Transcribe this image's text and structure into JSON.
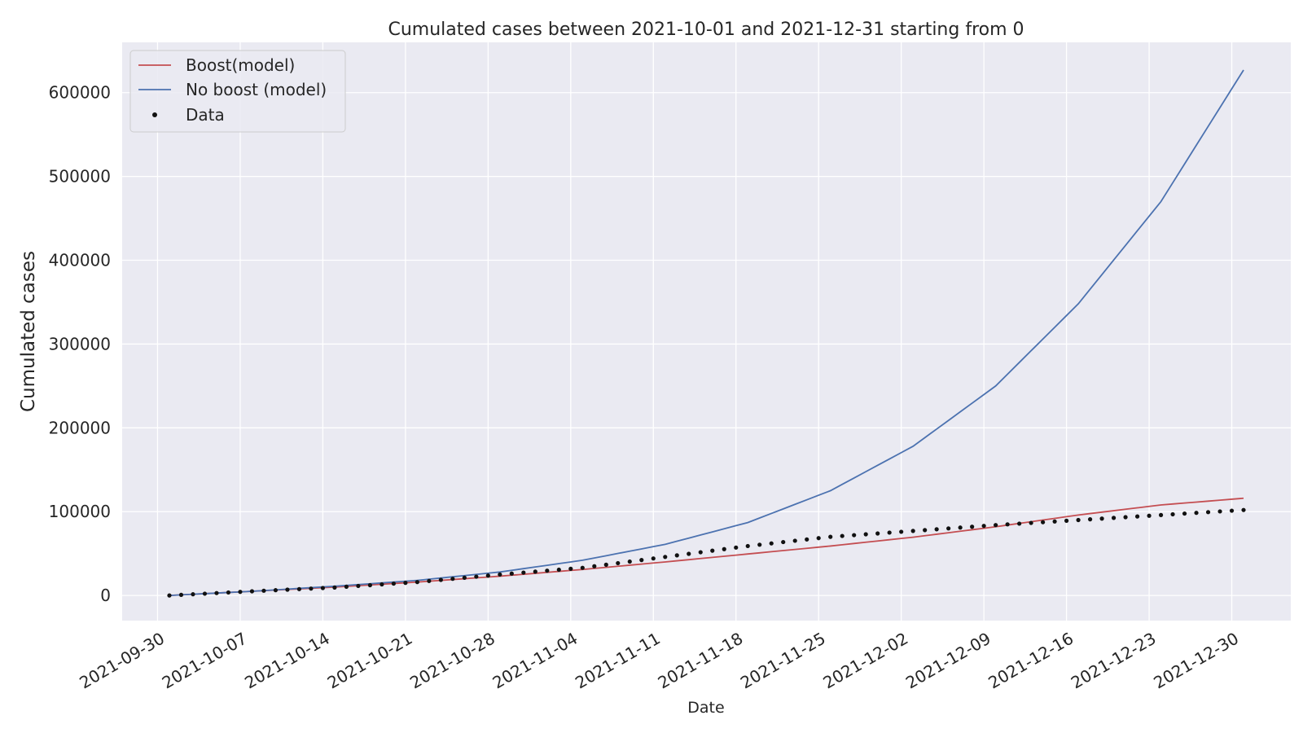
{
  "chart_data": {
    "type": "line",
    "title": "Cumulated cases between 2021-10-01 and 2021-12-31 starting from 0",
    "xlabel": "Date",
    "ylabel": "Cumulated cases",
    "x_range": [
      "2021-10-01",
      "2021-12-31"
    ],
    "xlim": [
      "2021-09-27",
      "2022-01-04"
    ],
    "ylim": [
      -30000,
      660000
    ],
    "x_ticks": [
      "2021-09-30",
      "2021-10-07",
      "2021-10-14",
      "2021-10-21",
      "2021-10-28",
      "2021-11-04",
      "2021-11-11",
      "2021-11-18",
      "2021-11-25",
      "2021-12-02",
      "2021-12-09",
      "2021-12-16",
      "2021-12-23",
      "2021-12-30"
    ],
    "y_ticks": [
      0,
      100000,
      200000,
      300000,
      400000,
      500000,
      600000
    ],
    "y_tick_labels": [
      "0",
      "100000",
      "200000",
      "300000",
      "400000",
      "500000",
      "600000"
    ],
    "grid": true,
    "legend_position": "top-left",
    "colors": {
      "background": "#eaeaf2",
      "grid": "#ffffff",
      "boost": "#c44e52",
      "no_boost": "#4c72b0",
      "data": "#111111"
    },
    "series": [
      {
        "name": "Boost(model)",
        "kind": "line",
        "color": "#c44e52",
        "points": [
          [
            "2021-10-01",
            0
          ],
          [
            "2021-10-08",
            5000
          ],
          [
            "2021-10-15",
            10000
          ],
          [
            "2021-10-22",
            16000
          ],
          [
            "2021-10-29",
            23000
          ],
          [
            "2021-11-05",
            31000
          ],
          [
            "2021-11-12",
            40000
          ],
          [
            "2021-11-19",
            49500
          ],
          [
            "2021-11-26",
            59000
          ],
          [
            "2021-12-03",
            69500
          ],
          [
            "2021-12-10",
            82000
          ],
          [
            "2021-12-17",
            96000
          ],
          [
            "2021-12-24",
            108000
          ],
          [
            "2021-12-31",
            116000
          ]
        ]
      },
      {
        "name": "No boost (model)",
        "kind": "line",
        "color": "#4c72b0",
        "points": [
          [
            "2021-10-01",
            0
          ],
          [
            "2021-10-08",
            5000
          ],
          [
            "2021-10-15",
            11000
          ],
          [
            "2021-10-22",
            18000
          ],
          [
            "2021-10-29",
            28000
          ],
          [
            "2021-11-05",
            42000
          ],
          [
            "2021-11-12",
            61000
          ],
          [
            "2021-11-19",
            87000
          ],
          [
            "2021-11-26",
            125000
          ],
          [
            "2021-12-03",
            178000
          ],
          [
            "2021-12-10",
            250000
          ],
          [
            "2021-12-17",
            348000
          ],
          [
            "2021-12-24",
            470000
          ],
          [
            "2021-12-31",
            627000
          ]
        ]
      },
      {
        "name": "Data",
        "kind": "scatter",
        "color": "#111111",
        "points": [
          [
            "2021-10-01",
            0
          ],
          [
            "2021-10-08",
            5000
          ],
          [
            "2021-10-15",
            9500
          ],
          [
            "2021-10-22",
            16000
          ],
          [
            "2021-10-29",
            25000
          ],
          [
            "2021-11-05",
            33000
          ],
          [
            "2021-11-12",
            46000
          ],
          [
            "2021-11-19",
            59000
          ],
          [
            "2021-11-26",
            70000
          ],
          [
            "2021-12-03",
            77000
          ],
          [
            "2021-12-10",
            84000
          ],
          [
            "2021-12-17",
            90000
          ],
          [
            "2021-12-24",
            96000
          ],
          [
            "2021-12-31",
            102000
          ]
        ]
      }
    ]
  }
}
